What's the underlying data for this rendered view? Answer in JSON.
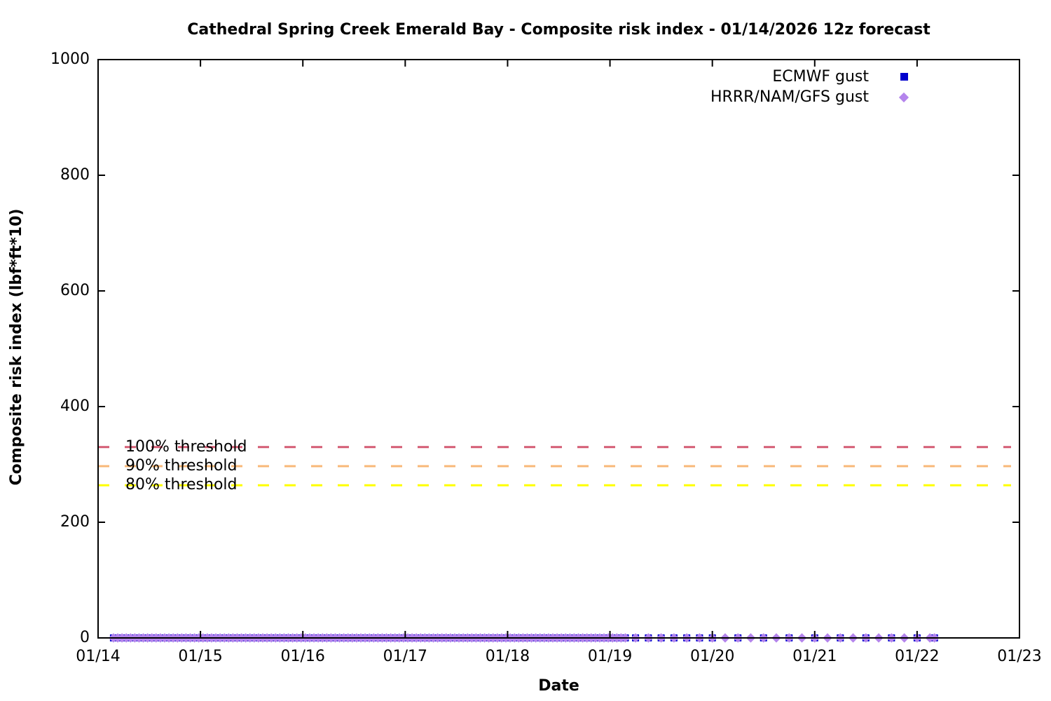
{
  "title": "Cathedral Spring Creek Emerald Bay - Composite risk index - 01/14/2026 12z forecast",
  "chart_data": {
    "type": "scatter",
    "title": "Cathedral Spring Creek Emerald Bay - Composite risk index - 01/14/2026 12z forecast",
    "xlabel": "Date",
    "ylabel": "Composite risk index (lbf*ft*10)",
    "x_tick_labels": [
      "01/14",
      "01/15",
      "01/16",
      "01/17",
      "01/18",
      "01/19",
      "01/20",
      "01/21",
      "01/22",
      "01/23"
    ],
    "xlim_days": [
      0,
      9
    ],
    "y_ticks": [
      0,
      200,
      400,
      600,
      800,
      1000
    ],
    "ylim": [
      0,
      1000
    ],
    "grid": false,
    "legend_position": "top-right-inside",
    "series": [
      {
        "name": "ECMWF gust",
        "marker": "square",
        "color": "#0000cd",
        "value": 0,
        "note": "all points lie at y=0; days measured from 01/14 00z",
        "segments": [
          {
            "start_day": 0.15,
            "end_day": 5.17,
            "step_hours": 1
          },
          {
            "start_day": 5.25,
            "end_day": 6.0,
            "step_hours": 3
          },
          {
            "start_day": 6.25,
            "end_day": 8.0,
            "step_hours": 6
          },
          {
            "start_day": 8.17,
            "end_day": 8.17,
            "step_hours": 1
          }
        ]
      },
      {
        "name": "HRRR/NAM/GFS gust",
        "marker": "diamond",
        "color": "#b484ec",
        "value": 0,
        "note": "all points lie at y=0; days measured from 01/14 00z",
        "segments": [
          {
            "start_day": 0.15,
            "end_day": 5.17,
            "step_hours": 1
          },
          {
            "start_day": 5.25,
            "end_day": 8.13,
            "step_hours": 3
          },
          {
            "start_day": 8.17,
            "end_day": 8.17,
            "step_hours": 1
          }
        ]
      }
    ],
    "thresholds": [
      {
        "label": "100% threshold",
        "value": 330,
        "color": "#d45c74"
      },
      {
        "label": "90% threshold",
        "value": 297,
        "color": "#f8b878"
      },
      {
        "label": "80% threshold",
        "value": 264,
        "color": "#ffff00"
      }
    ]
  },
  "colors": {
    "axis": "#000000",
    "background": "#ffffff",
    "text": "#000000"
  }
}
